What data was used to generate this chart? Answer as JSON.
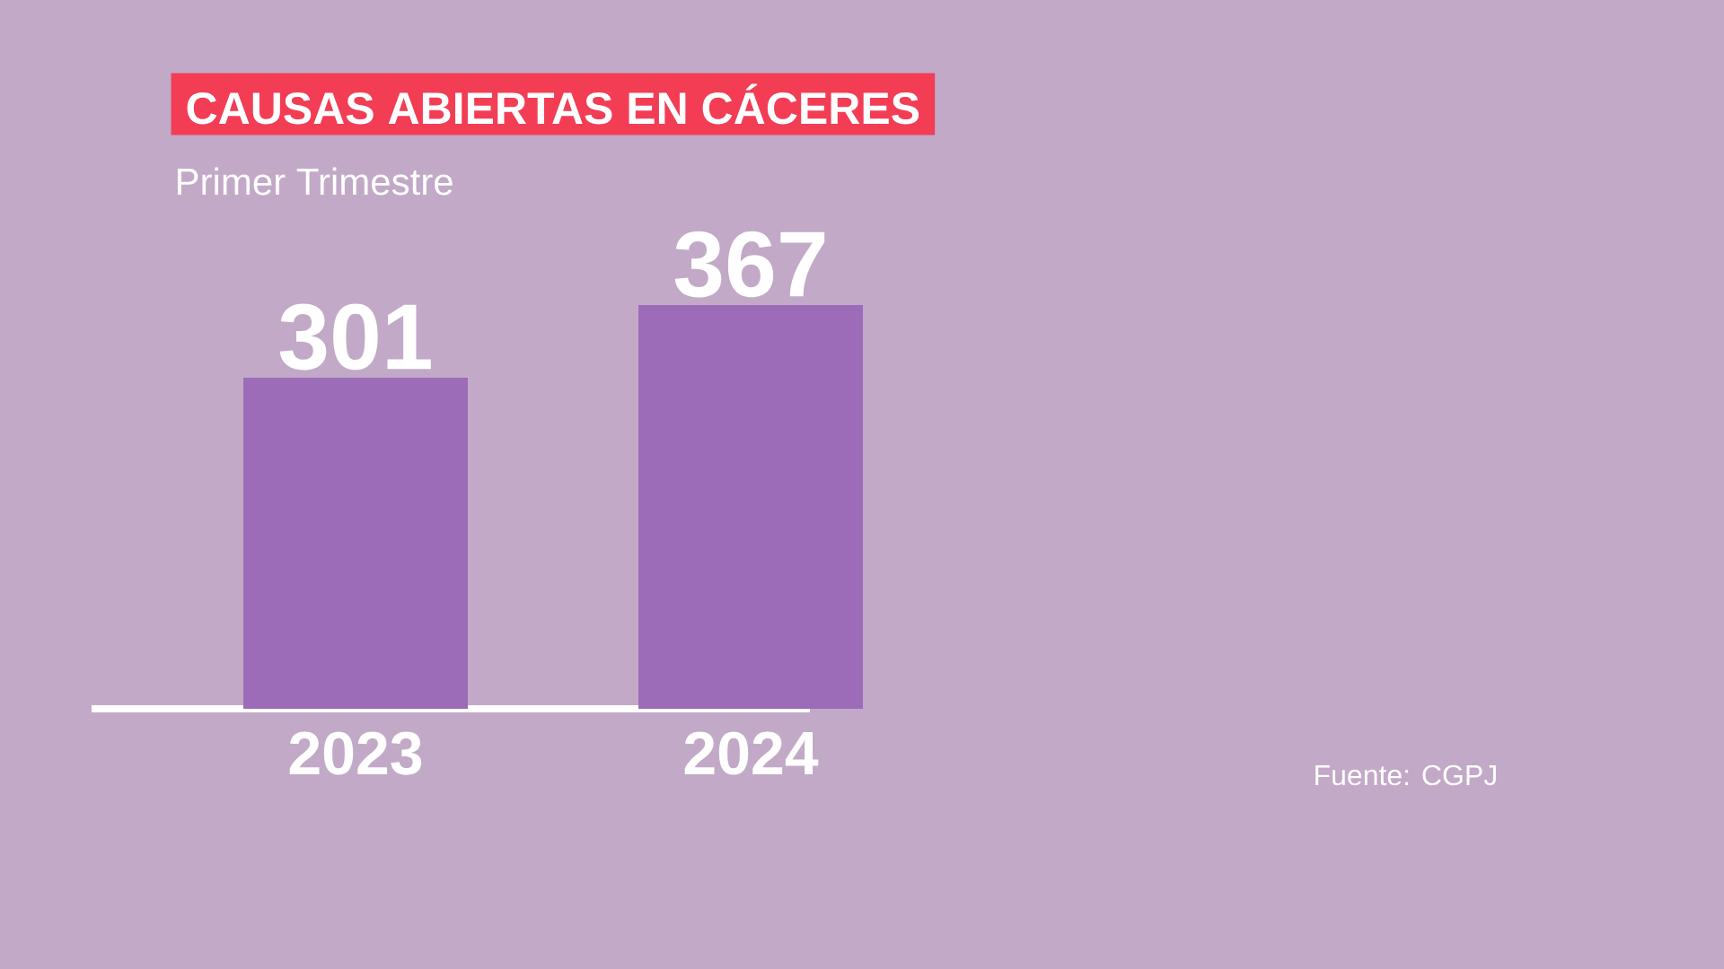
{
  "chart_data": {
    "type": "bar",
    "title": "CAUSAS ABIERTAS EN CÁCERES",
    "subtitle": "Primer Trimestre",
    "categories": [
      "2023",
      "2024"
    ],
    "values": [
      301,
      367
    ],
    "color": "#9c6cb9",
    "data_labels": true,
    "annotations": [
      "Fuente: CGPJ"
    ]
  }
}
